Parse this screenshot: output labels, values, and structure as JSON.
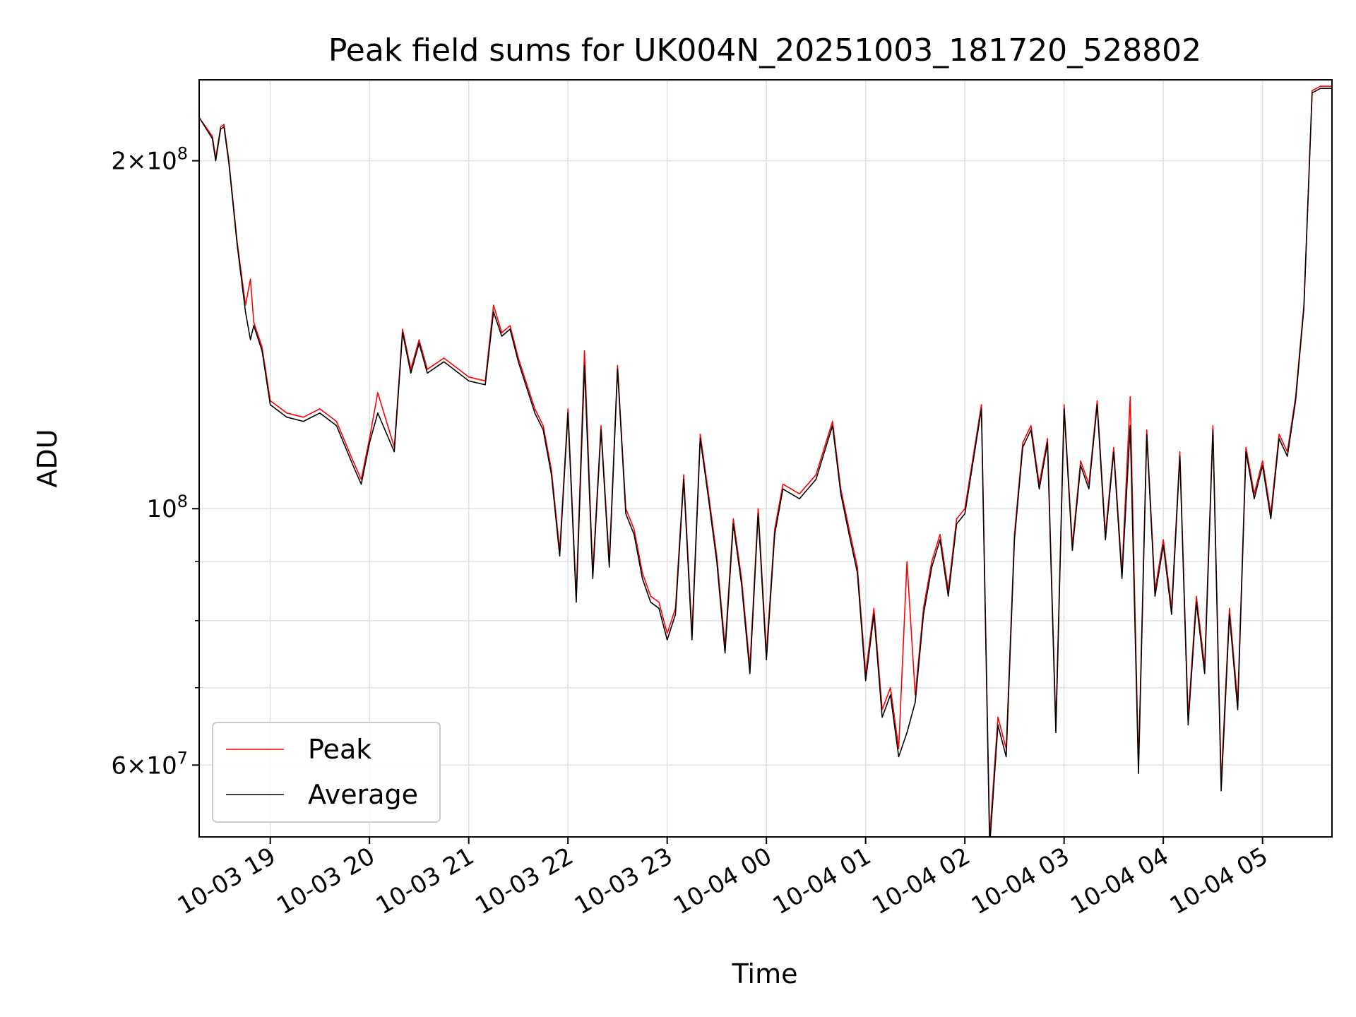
{
  "chart_data": {
    "type": "line",
    "title": "Peak field sums for UK004N_20251003_181720_528802",
    "xlabel": "Time",
    "ylabel": "ADU",
    "y_scale": "log",
    "ylim": [
      52000000,
      235000000
    ],
    "grid": true,
    "legend_position": "lower-left",
    "x_ticks": [
      "10-03 19",
      "10-03 20",
      "10-03 21",
      "10-03 22",
      "10-03 23",
      "10-04 00",
      "10-04 01",
      "10-04 02",
      "10-04 03",
      "10-04 04",
      "10-04 05"
    ],
    "y_ticks": [
      {
        "value": 200000000,
        "mantissa": "2",
        "exponent": "8"
      },
      {
        "value": 100000000,
        "mantissa": "",
        "exponent": "8"
      },
      {
        "value": 60000000,
        "mantissa": "6",
        "exponent": "7"
      }
    ],
    "x_start": "2025-10-03 18:17",
    "x_end": "2025-10-04 05:42",
    "x": [
      "2025-10-03 18:17",
      "2025-10-03 18:25",
      "2025-10-03 18:27",
      "2025-10-03 18:30",
      "2025-10-03 18:32",
      "2025-10-03 18:35",
      "2025-10-03 18:40",
      "2025-10-03 18:45",
      "2025-10-03 18:48",
      "2025-10-03 18:50",
      "2025-10-03 18:55",
      "2025-10-03 19:00",
      "2025-10-03 19:10",
      "2025-10-03 19:20",
      "2025-10-03 19:30",
      "2025-10-03 19:40",
      "2025-10-03 19:50",
      "2025-10-03 19:55",
      "2025-10-03 20:00",
      "2025-10-03 20:05",
      "2025-10-03 20:15",
      "2025-10-03 20:20",
      "2025-10-03 20:25",
      "2025-10-03 20:30",
      "2025-10-03 20:35",
      "2025-10-03 20:45",
      "2025-10-03 21:00",
      "2025-10-03 21:10",
      "2025-10-03 21:15",
      "2025-10-03 21:20",
      "2025-10-03 21:25",
      "2025-10-03 21:30",
      "2025-10-03 21:40",
      "2025-10-03 21:45",
      "2025-10-03 21:50",
      "2025-10-03 21:55",
      "2025-10-03 22:00",
      "2025-10-03 22:05",
      "2025-10-03 22:10",
      "2025-10-03 22:15",
      "2025-10-03 22:20",
      "2025-10-03 22:25",
      "2025-10-03 22:30",
      "2025-10-03 22:35",
      "2025-10-03 22:40",
      "2025-10-03 22:45",
      "2025-10-03 22:50",
      "2025-10-03 22:55",
      "2025-10-03 23:00",
      "2025-10-03 23:05",
      "2025-10-03 23:10",
      "2025-10-03 23:15",
      "2025-10-03 23:20",
      "2025-10-03 23:25",
      "2025-10-03 23:30",
      "2025-10-03 23:35",
      "2025-10-03 23:40",
      "2025-10-03 23:45",
      "2025-10-03 23:50",
      "2025-10-03 23:55",
      "2025-10-04 00:00",
      "2025-10-04 00:05",
      "2025-10-04 00:10",
      "2025-10-04 00:20",
      "2025-10-04 00:30",
      "2025-10-04 00:40",
      "2025-10-04 00:45",
      "2025-10-04 00:50",
      "2025-10-04 00:55",
      "2025-10-04 01:00",
      "2025-10-04 01:05",
      "2025-10-04 01:10",
      "2025-10-04 01:15",
      "2025-10-04 01:20",
      "2025-10-04 01:25",
      "2025-10-04 01:30",
      "2025-10-04 01:35",
      "2025-10-04 01:40",
      "2025-10-04 01:45",
      "2025-10-04 01:50",
      "2025-10-04 01:55",
      "2025-10-04 02:00",
      "2025-10-04 02:10",
      "2025-10-04 02:15",
      "2025-10-04 02:20",
      "2025-10-04 02:25",
      "2025-10-04 02:30",
      "2025-10-04 02:35",
      "2025-10-04 02:40",
      "2025-10-04 02:45",
      "2025-10-04 02:50",
      "2025-10-04 02:55",
      "2025-10-04 03:00",
      "2025-10-04 03:05",
      "2025-10-04 03:10",
      "2025-10-04 03:15",
      "2025-10-04 03:20",
      "2025-10-04 03:25",
      "2025-10-04 03:30",
      "2025-10-04 03:35",
      "2025-10-04 03:40",
      "2025-10-04 03:45",
      "2025-10-04 03:50",
      "2025-10-04 03:55",
      "2025-10-04 04:00",
      "2025-10-04 04:05",
      "2025-10-04 04:10",
      "2025-10-04 04:15",
      "2025-10-04 04:20",
      "2025-10-04 04:25",
      "2025-10-04 04:30",
      "2025-10-04 04:35",
      "2025-10-04 04:40",
      "2025-10-04 04:45",
      "2025-10-04 04:50",
      "2025-10-04 04:55",
      "2025-10-04 05:00",
      "2025-10-04 05:05",
      "2025-10-04 05:10",
      "2025-10-04 05:15",
      "2025-10-04 05:20",
      "2025-10-04 05:25",
      "2025-10-04 05:30",
      "2025-10-04 05:35",
      "2025-10-04 05:42"
    ],
    "series": [
      {
        "name": "Peak",
        "color": "#ff0000",
        "values": [
          218000000,
          210000000,
          201000000,
          214000000,
          215000000,
          200000000,
          170000000,
          150000000,
          158000000,
          145000000,
          138000000,
          124000000,
          121000000,
          120000000,
          122000000,
          119000000,
          110000000,
          106000000,
          115000000,
          126000000,
          113000000,
          143000000,
          132000000,
          140000000,
          132000000,
          135000000,
          130000000,
          129000000,
          150000000,
          142000000,
          144000000,
          135000000,
          122000000,
          118000000,
          108000000,
          92000000,
          122000000,
          84000000,
          137000000,
          88000000,
          118000000,
          90000000,
          133000000,
          100000000,
          96000000,
          88000000,
          84000000,
          83000000,
          78000000,
          82000000,
          107000000,
          78000000,
          116000000,
          103000000,
          91000000,
          76000000,
          98000000,
          87000000,
          73000000,
          100000000,
          75000000,
          96000000,
          105000000,
          103000000,
          107000000,
          119000000,
          104000000,
          96000000,
          89000000,
          72000000,
          82000000,
          67000000,
          70000000,
          62000000,
          90000000,
          69000000,
          82000000,
          90000000,
          95000000,
          85000000,
          98000000,
          100000000,
          123000000,
          52000000,
          66000000,
          62000000,
          95000000,
          114000000,
          118000000,
          105000000,
          115000000,
          65000000,
          123000000,
          93000000,
          110000000,
          105000000,
          124000000,
          95000000,
          113000000,
          88000000,
          125000000,
          60000000,
          117000000,
          85000000,
          94000000,
          82000000,
          112000000,
          66000000,
          84000000,
          73000000,
          118000000,
          58000000,
          82000000,
          68000000,
          113000000,
          103000000,
          110000000,
          99000000,
          116000000,
          112000000,
          125000000,
          150000000,
          230000000,
          232000000,
          232000000
        ]
      },
      {
        "name": "Average",
        "color": "#000000",
        "values": [
          218000000,
          209000000,
          200000000,
          213000000,
          214000000,
          199000000,
          169000000,
          148000000,
          140000000,
          144000000,
          137000000,
          123000000,
          120000000,
          119000000,
          121000000,
          118000000,
          109000000,
          105000000,
          114000000,
          121000000,
          112000000,
          142000000,
          131000000,
          139000000,
          131000000,
          134000000,
          129000000,
          128000000,
          148000000,
          141000000,
          143000000,
          134000000,
          121000000,
          117000000,
          107000000,
          91000000,
          121000000,
          83000000,
          133000000,
          87000000,
          117000000,
          89000000,
          132000000,
          99000000,
          95000000,
          87000000,
          83000000,
          82000000,
          77000000,
          81000000,
          106000000,
          77000000,
          115000000,
          102000000,
          90000000,
          75000000,
          97000000,
          86000000,
          72000000,
          99000000,
          74000000,
          95000000,
          104000000,
          102000000,
          106000000,
          118000000,
          103000000,
          95000000,
          88000000,
          71000000,
          81000000,
          66000000,
          69000000,
          61000000,
          64000000,
          68000000,
          81000000,
          89000000,
          94000000,
          84000000,
          97000000,
          99000000,
          122000000,
          51000000,
          65000000,
          61000000,
          94000000,
          113000000,
          117000000,
          104000000,
          114000000,
          64000000,
          122000000,
          92000000,
          109000000,
          104000000,
          123000000,
          94000000,
          112000000,
          87000000,
          118000000,
          59000000,
          116000000,
          84000000,
          93000000,
          81000000,
          111000000,
          65000000,
          83000000,
          72000000,
          117000000,
          57000000,
          81000000,
          67000000,
          112000000,
          102000000,
          109000000,
          98000000,
          115000000,
          111000000,
          124000000,
          149000000,
          229000000,
          231000000,
          231000000
        ]
      }
    ]
  }
}
